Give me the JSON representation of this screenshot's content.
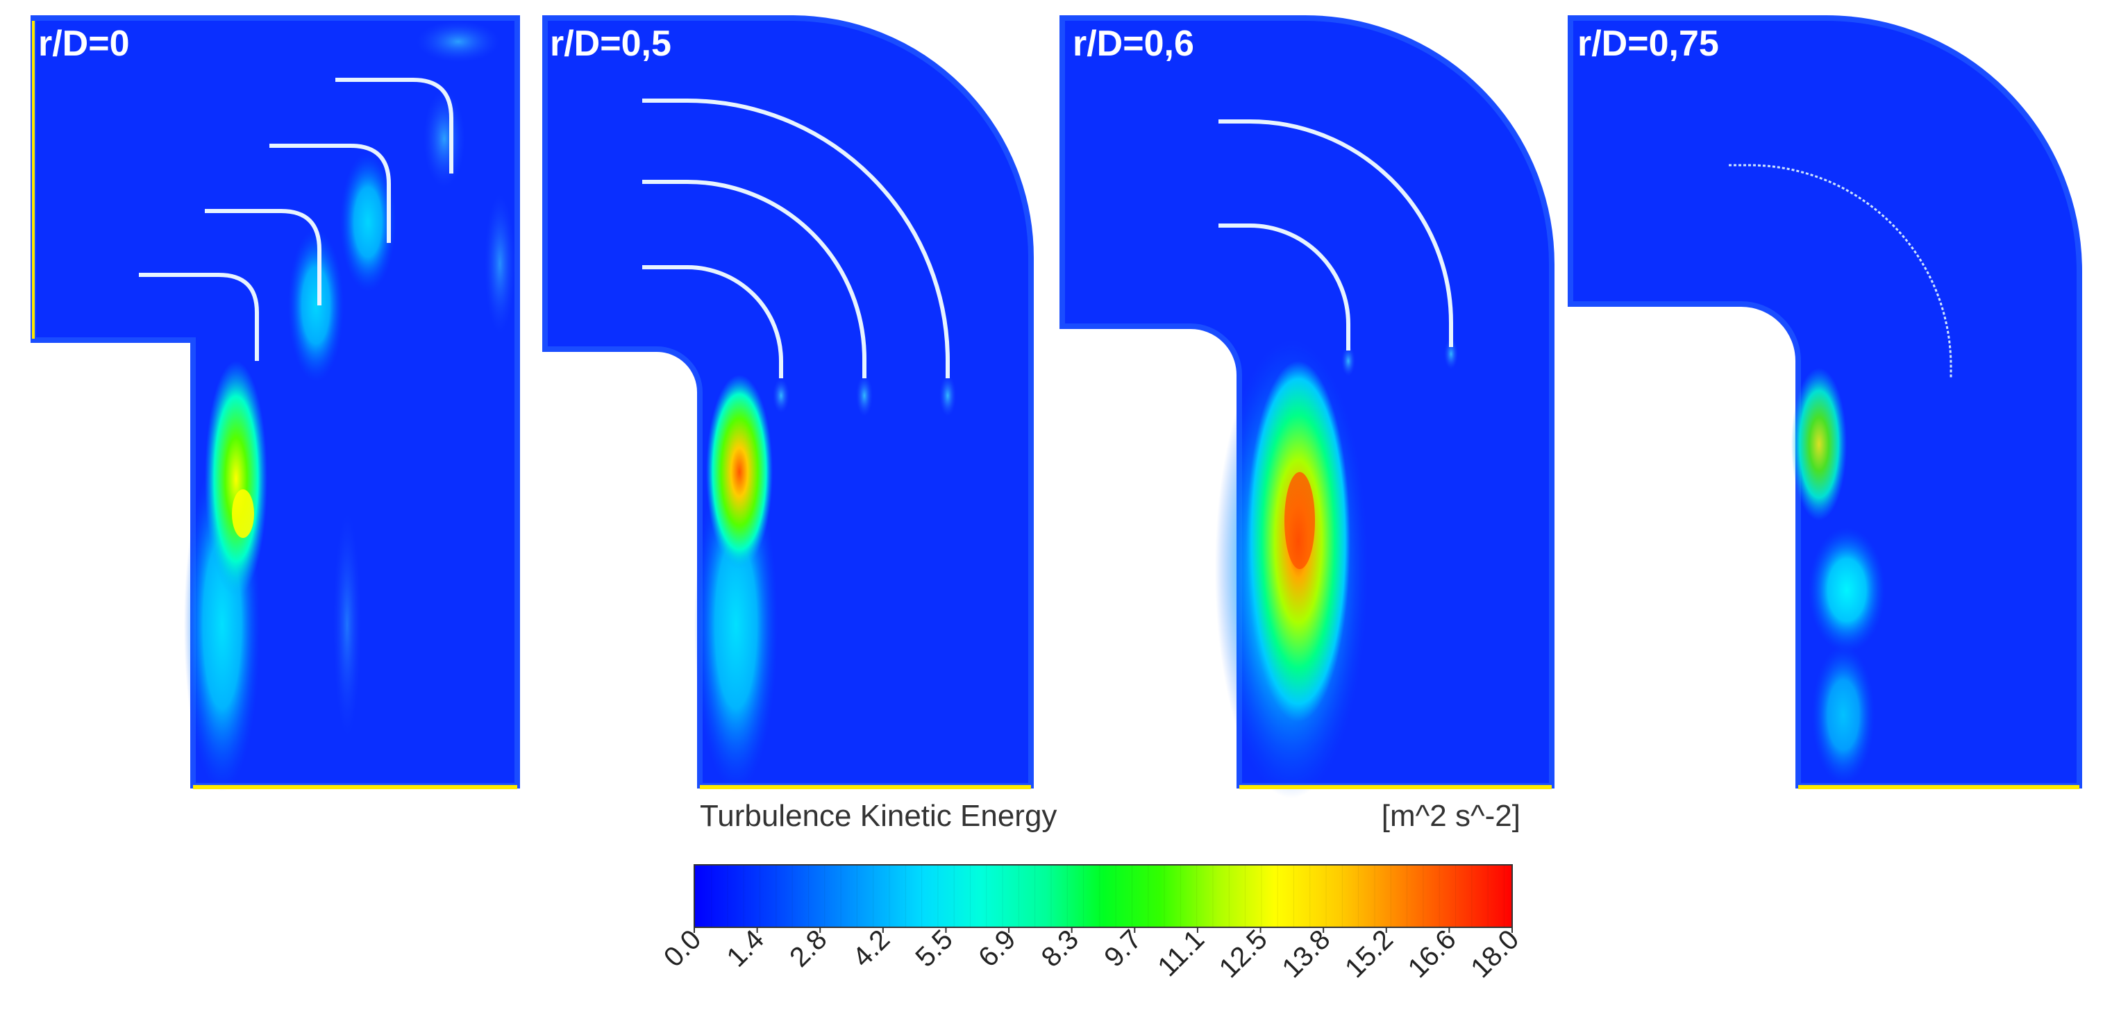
{
  "panels": [
    {
      "label": "r/D=0",
      "vanes": 4
    },
    {
      "label": "r/D=0,5",
      "vanes": 3
    },
    {
      "label": "r/D=0,6",
      "vanes": 2
    },
    {
      "label": "r/D=0,75",
      "vanes": 1
    }
  ],
  "legend": {
    "title": "Turbulence Kinetic Energy",
    "unit": "[m^2 s^-2]",
    "min": 0.0,
    "max": 18.0,
    "ticks": [
      "0.0",
      "1.4",
      "2.8",
      "4.2",
      "5.5",
      "6.9",
      "8.3",
      "9.7",
      "11.1",
      "12.5",
      "13.8",
      "15.2",
      "16.6",
      "18.0"
    ]
  },
  "colors": {
    "background_flow": "#0a2fff",
    "boundary": "#1a4dff",
    "baseline": "#ffea00",
    "scale": [
      "#0000ff",
      "#0055ff",
      "#00aaff",
      "#00ffff",
      "#00ffaa",
      "#00ff55",
      "#00ff00",
      "#55ff00",
      "#aaff00",
      "#ffff00",
      "#ffaa00",
      "#ff5500",
      "#ff0000"
    ]
  }
}
